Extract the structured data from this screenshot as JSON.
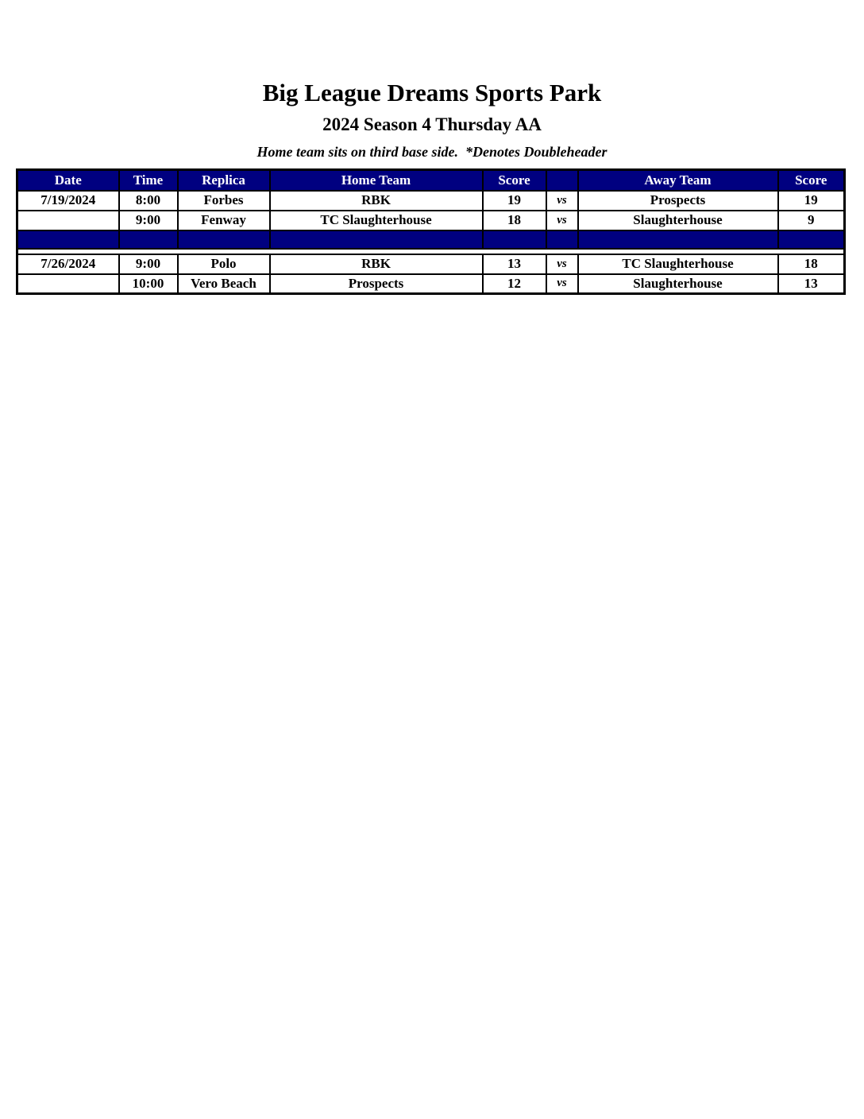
{
  "page": {
    "title": "Big League Dreams Sports Park",
    "subtitle": "2024 Season 4 Thursday AA",
    "note": "Home team sits on third base side.  *Denotes Doubleheader"
  },
  "colors": {
    "header_bg": "#000080",
    "header_text": "#ffffff",
    "highlight": "#ffff00",
    "border": "#000000"
  },
  "table": {
    "columns": [
      "Date",
      "Time",
      "Replica",
      "Home Team",
      "Score",
      "",
      "Away Team",
      "Score"
    ],
    "rows": [
      {
        "type": "game",
        "date": "7/19/2024",
        "time": "8:00",
        "replica": "Forbes",
        "home": "RBK",
        "home_score": "19",
        "vs": "vs",
        "away": "Prospects",
        "away_score": "19",
        "home_highlight": true,
        "away_highlight": true
      },
      {
        "type": "game",
        "date": "",
        "time": "9:00",
        "replica": "Fenway",
        "home": "TC Slaughterhouse",
        "home_score": "18",
        "vs": "vs",
        "away": "Slaughterhouse",
        "away_score": "9",
        "home_highlight": true,
        "away_highlight": false
      },
      {
        "type": "separator"
      },
      {
        "type": "game",
        "date": "7/26/2024",
        "time": "9:00",
        "replica": "Polo",
        "home": "RBK",
        "home_score": "13",
        "vs": "vs",
        "away": "TC Slaughterhouse",
        "away_score": "18",
        "home_highlight": false,
        "away_highlight": true
      },
      {
        "type": "game",
        "date": "",
        "time": "10:00",
        "replica": "Vero Beach",
        "home": "Prospects",
        "home_score": "12",
        "vs": "vs",
        "away": "Slaughterhouse",
        "away_score": "13",
        "home_highlight": false,
        "away_highlight": true
      }
    ]
  }
}
